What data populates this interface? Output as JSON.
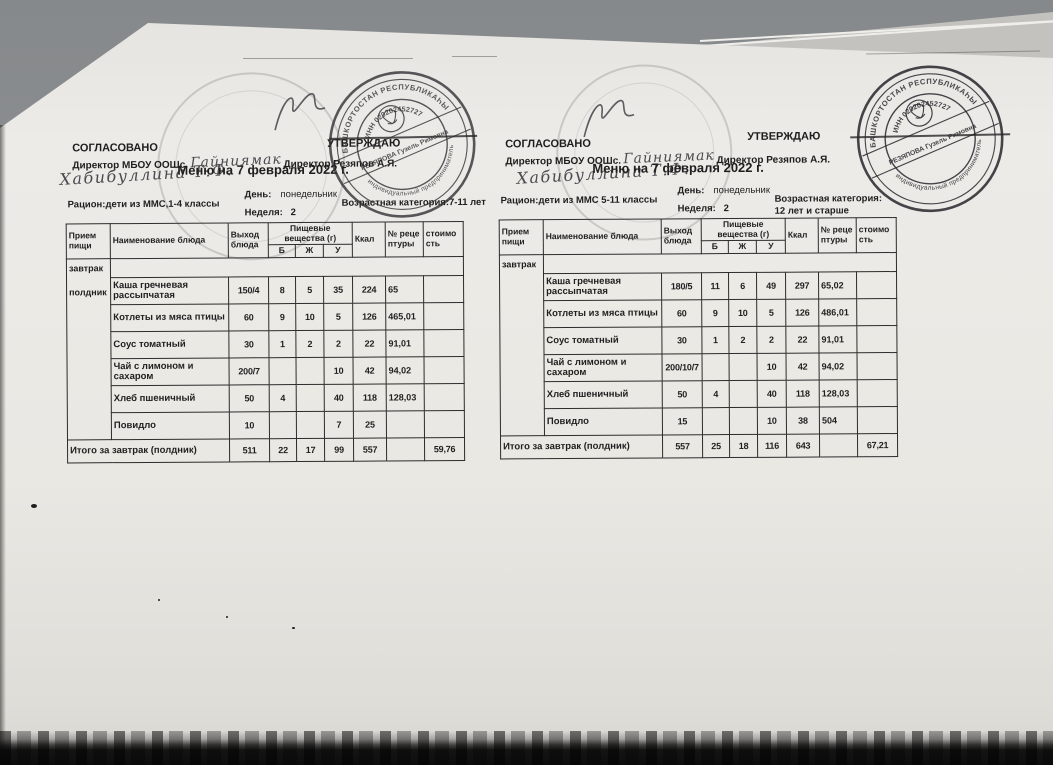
{
  "scan": {
    "background_color": "#8e9092",
    "paper_color": "#eae8e3",
    "ink_color": "#1e1e1e",
    "stamp_color": "#2b2b30"
  },
  "documents": [
    {
      "agreed_label": "СОГЛАСОВАНО",
      "agreed_role": "Директор МБОУ ООШс.",
      "school_handwritten": "Гайниямак",
      "approved_label": "УТВЕРЖДАЮ",
      "approved_role": "Директор Резяпов А.Я.",
      "signature_name": "Хабибуллина Т.Ф.",
      "title": "Меню на 7 февраля 2022 г.",
      "day_label": "День:",
      "day_value": "понедельник",
      "ration_line": "Рацион:дети из ММС,1-4 классы",
      "week_label": "Неделя:",
      "week_value": "2",
      "age_line1": "Возрастная категория:7-11 лет",
      "age_line2": "",
      "stamp": {
        "ring_top": "БАШКОРТОСТАН РЕСПУБЛИКАҺЫ",
        "ring_bottom": "индивидуальный предприниматель",
        "inn": "ИНН 020202452727",
        "name_band": "РЕЗЯПОВА Гузель Римовна"
      },
      "table": {
        "headers": {
          "meal": "Прием пищи",
          "dish": "Наименование блюда",
          "portion": "Выход блюда",
          "nutrients_group": "Пищевые вещества (г)",
          "protein": "Б",
          "fat": "Ж",
          "carbs": "У",
          "kcal": "Ккал",
          "recipe": "№ рецептуры",
          "cost": "стоимость"
        },
        "meal_labels": [
          "завтрак",
          "полдник"
        ],
        "rows": [
          {
            "dish": "Каша гречневая рассыпчатая",
            "portion": "150/4",
            "b": "8",
            "zh": "5",
            "u": "35",
            "kcal": "224",
            "recipe": "65",
            "cost": ""
          },
          {
            "dish": "Котлеты из мяса птицы",
            "portion": "60",
            "b": "9",
            "zh": "10",
            "u": "5",
            "kcal": "126",
            "recipe": "465,01",
            "cost": ""
          },
          {
            "dish": "Соус томатный",
            "portion": "30",
            "b": "1",
            "zh": "2",
            "u": "2",
            "kcal": "22",
            "recipe": "91,01",
            "cost": ""
          },
          {
            "dish": "Чай с лимоном и сахаром",
            "portion": "200/7",
            "b": "",
            "zh": "",
            "u": "10",
            "kcal": "42",
            "recipe": "94,02",
            "cost": ""
          },
          {
            "dish": "Хлеб пшеничный",
            "portion": "50",
            "b": "4",
            "zh": "",
            "u": "40",
            "kcal": "118",
            "recipe": "128,03",
            "cost": ""
          },
          {
            "dish": "Повидло",
            "portion": "10",
            "b": "",
            "zh": "",
            "u": "7",
            "kcal": "25",
            "recipe": "",
            "cost": ""
          }
        ],
        "total": {
          "label": "Итого за завтрак (полдник)",
          "portion": "511",
          "b": "22",
          "zh": "17",
          "u": "99",
          "kcal": "557",
          "recipe": "",
          "cost": "59,76"
        }
      }
    },
    {
      "agreed_label": "СОГЛАСОВАНО",
      "agreed_role": "Директор МБОУ ООШс.",
      "school_handwritten": "Гайниямак",
      "approved_label": "УТВЕРЖДАЮ",
      "approved_role": "Директор Резяпов А.Я.",
      "signature_name": "Хабибуллина Т.Ф.",
      "title": "Меню на 7 февраля 2022 г.",
      "day_label": "День:",
      "day_value": "понедельник",
      "ration_line": "Рацион:дети из ММС 5-11 классы",
      "week_label": "Неделя:",
      "week_value": "2",
      "age_line1": "Возрастная категория:",
      "age_line2": "12 лет и старше",
      "stamp": {
        "ring_top": "БАШКОРТОСТАН РЕСПУБЛИКАҺЫ",
        "ring_bottom": "индивидуальный предприниматель",
        "inn": "ИНН 020202452727",
        "name_band": "РЕЗЯПОВА Гузель Римовна"
      },
      "table": {
        "headers": {
          "meal": "Прием пищи",
          "dish": "Наименование блюда",
          "portion": "Выход блюда",
          "nutrients_group": "Пищевые вещества (г)",
          "protein": "Б",
          "fat": "Ж",
          "carbs": "У",
          "kcal": "Ккал",
          "recipe": "№ рецептуры",
          "cost": "стоимость"
        },
        "meal_labels": [
          "завтрак"
        ],
        "rows": [
          {
            "dish": "Каша гречневая рассыпчатая",
            "portion": "180/5",
            "b": "11",
            "zh": "6",
            "u": "49",
            "kcal": "297",
            "recipe": "65,02",
            "cost": ""
          },
          {
            "dish": "Котлеты из мяса птицы",
            "portion": "60",
            "b": "9",
            "zh": "10",
            "u": "5",
            "kcal": "126",
            "recipe": "486,01",
            "cost": ""
          },
          {
            "dish": "Соус томатный",
            "portion": "30",
            "b": "1",
            "zh": "2",
            "u": "2",
            "kcal": "22",
            "recipe": "91,01",
            "cost": ""
          },
          {
            "dish": "Чай с лимоном и сахаром",
            "portion": "200/10/7",
            "b": "",
            "zh": "",
            "u": "10",
            "kcal": "42",
            "recipe": "94,02",
            "cost": ""
          },
          {
            "dish": "Хлеб пшеничный",
            "portion": "50",
            "b": "4",
            "zh": "",
            "u": "40",
            "kcal": "118",
            "recipe": "128,03",
            "cost": ""
          },
          {
            "dish": "Повидло",
            "portion": "15",
            "b": "",
            "zh": "",
            "u": "10",
            "kcal": "38",
            "recipe": "504",
            "cost": ""
          }
        ],
        "total": {
          "label": "Итого за завтрак (полдник)",
          "portion": "557",
          "b": "25",
          "zh": "18",
          "u": "116",
          "kcal": "643",
          "recipe": "",
          "cost": "67,21"
        }
      }
    }
  ]
}
